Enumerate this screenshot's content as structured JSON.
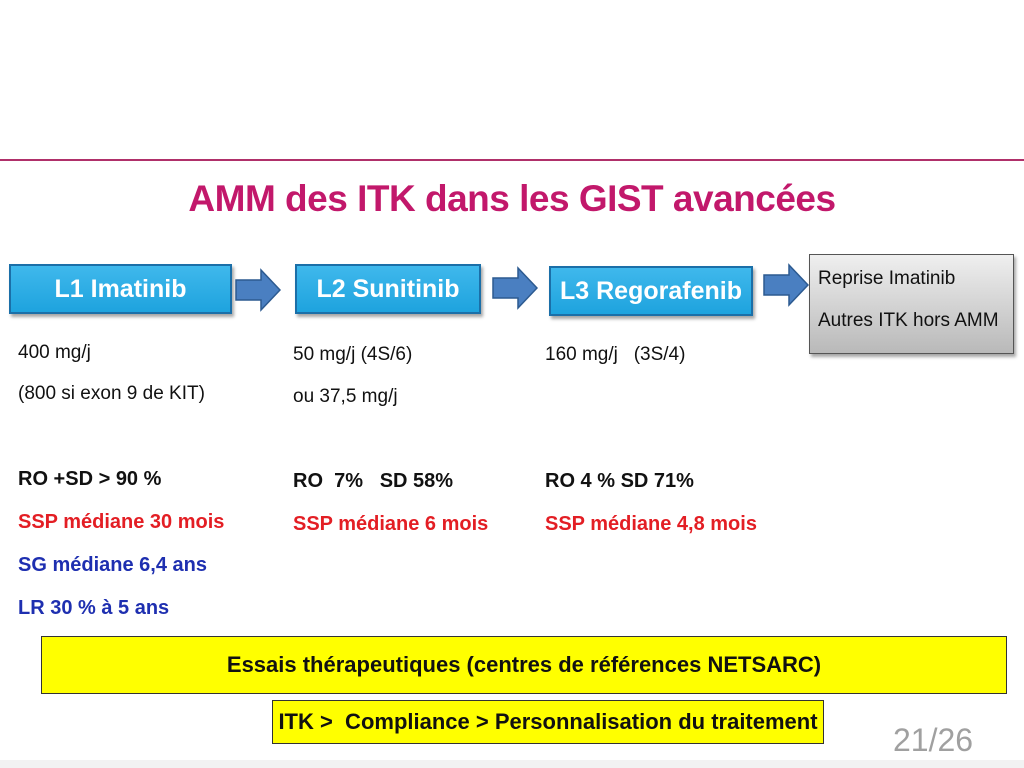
{
  "title": "AMM des ITK dans les GIST avancées",
  "steps": [
    {
      "label": "L1 Imatinib"
    },
    {
      "label": "L2 Sunitinib"
    },
    {
      "label": "L3 Regorafenib"
    }
  ],
  "final_box": {
    "line1": "Reprise Imatinib",
    "line2": "Autres ITK hors AMM"
  },
  "columns": [
    {
      "dose1": "400 mg/j",
      "dose2": "(800 si exon 9 de KIT)",
      "ro": "RO +SD > 90 %",
      "ssp": "SSP médiane 30 mois",
      "sg": "SG médiane 6,4 ans",
      "lr": "LR 30 % à 5 ans"
    },
    {
      "dose1": "50 mg/j (4S/6)",
      "dose2": "ou 37,5 mg/j",
      "ro": "RO  7%   SD 58%",
      "ssp": "SSP médiane 6 mois"
    },
    {
      "dose1": "160 mg/j   (3S/4)",
      "ro": "RO 4 % SD 71%",
      "ssp": "SSP médiane 4,8 mois"
    }
  ],
  "banner": "Essais thérapeutiques (centres de références NETSARC)",
  "footer_box": "ITK >  Compliance > Personnalisation du traitement",
  "page_number": "21/26",
  "colors": {
    "title": "#c2186b",
    "step_box": "#1ea3de",
    "arrow": "#4a7fc1",
    "banner": "#ffff00",
    "ssp_text": "#e31e24",
    "sg_text": "#1e2fb0"
  }
}
